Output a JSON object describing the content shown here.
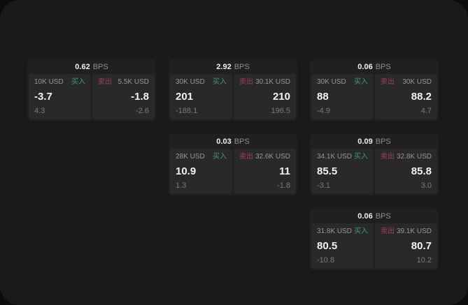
{
  "labels": {
    "buy": "买入",
    "sell": "卖出",
    "bps_suffix": "BPS"
  },
  "colors": {
    "page_bg": "#0c0c0d",
    "window_bg": "#1a1a1c",
    "card_bg": "#202023",
    "panel_bg": "#29292c",
    "value_text": "#f3f3f4",
    "label_text": "#97979a",
    "sub_text": "#7b7b7f",
    "buy_green": "#3d9d67",
    "sell_red": "#a84052"
  },
  "cards": [
    {
      "row": 1,
      "col": 1,
      "bps": "0.62",
      "buy": {
        "size": "10K USD",
        "value": "-3.7",
        "sub": "4.3"
      },
      "sell": {
        "size": "5.5K USD",
        "value": "-1.8",
        "sub": "-2.6"
      }
    },
    {
      "row": 1,
      "col": 2,
      "bps": "2.92",
      "buy": {
        "size": "30K USD",
        "value": "201",
        "sub": "-188.1"
      },
      "sell": {
        "size": "30.1K USD",
        "value": "210",
        "sub": "196.5"
      }
    },
    {
      "row": 1,
      "col": 3,
      "bps": "0.06",
      "buy": {
        "size": "30K USD",
        "value": "88",
        "sub": "-4.9"
      },
      "sell": {
        "size": "30K USD",
        "value": "88.2",
        "sub": "4.7"
      }
    },
    {
      "row": 2,
      "col": 2,
      "bps": "0.03",
      "buy": {
        "size": "28K USD",
        "value": "10.9",
        "sub": "1.3"
      },
      "sell": {
        "size": "32.6K USD",
        "value": "11",
        "sub": "-1.8"
      }
    },
    {
      "row": 2,
      "col": 3,
      "bps": "0.09",
      "buy": {
        "size": "34.1K USD",
        "value": "85.5",
        "sub": "-3.1"
      },
      "sell": {
        "size": "32.8K USD",
        "value": "85.8",
        "sub": "3.0"
      }
    },
    {
      "row": 3,
      "col": 3,
      "bps": "0.06",
      "buy": {
        "size": "31.8K USD",
        "value": "80.5",
        "sub": "-10.8"
      },
      "sell": {
        "size": "39.1K USD",
        "value": "80.7",
        "sub": "10.2"
      }
    }
  ]
}
